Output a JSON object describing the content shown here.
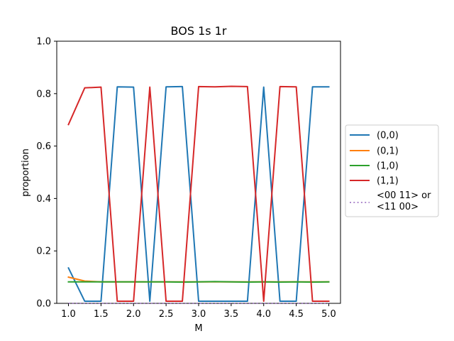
{
  "chart_data": {
    "type": "line",
    "title": "BOS 1s 1r",
    "xlabel": "M",
    "ylabel": "proportion",
    "xlim": [
      0.82,
      5.18
    ],
    "ylim": [
      0.0,
      1.0
    ],
    "x_ticks": [
      1.0,
      1.5,
      2.0,
      2.5,
      3.0,
      3.5,
      4.0,
      4.5,
      5.0
    ],
    "x_tick_labels": [
      "1.0",
      "1.5",
      "2.0",
      "2.5",
      "3.0",
      "3.5",
      "4.0",
      "4.5",
      "5.0"
    ],
    "y_ticks": [
      0.0,
      0.2,
      0.4,
      0.6,
      0.8,
      1.0
    ],
    "y_tick_labels": [
      "0.0",
      "0.2",
      "0.4",
      "0.6",
      "0.8",
      "1.0"
    ],
    "grid": false,
    "legend_position": "outside-right",
    "x": [
      1.0,
      1.25,
      1.5,
      1.75,
      2.0,
      2.25,
      2.5,
      2.75,
      3.0,
      3.25,
      3.5,
      3.75,
      4.0,
      4.25,
      4.5,
      4.75,
      5.0
    ],
    "series": [
      {
        "name": "(0,0)",
        "color": "#1f77b4",
        "dash": "solid",
        "values": [
          0.135,
          0.008,
          0.008,
          0.826,
          0.825,
          0.008,
          0.826,
          0.827,
          0.008,
          0.008,
          0.008,
          0.008,
          0.825,
          0.008,
          0.008,
          0.826,
          0.826
        ]
      },
      {
        "name": "(0,1)",
        "color": "#ff7f0e",
        "dash": "solid",
        "values": [
          0.1,
          0.085,
          0.082,
          0.082,
          0.082,
          0.082,
          0.082,
          0.082,
          0.082,
          0.082,
          0.082,
          0.082,
          0.082,
          0.082,
          0.082,
          0.082,
          0.082
        ]
      },
      {
        "name": "(1,0)",
        "color": "#2ca02c",
        "dash": "solid",
        "values": [
          0.082,
          0.082,
          0.082,
          0.082,
          0.082,
          0.082,
          0.082,
          0.081,
          0.082,
          0.083,
          0.082,
          0.081,
          0.082,
          0.081,
          0.082,
          0.081,
          0.082
        ]
      },
      {
        "name": "(1,1)",
        "color": "#d62728",
        "dash": "solid",
        "values": [
          0.682,
          0.822,
          0.825,
          0.008,
          0.008,
          0.825,
          0.008,
          0.008,
          0.827,
          0.826,
          0.828,
          0.827,
          0.008,
          0.827,
          0.826,
          0.008,
          0.008
        ]
      },
      {
        "name": "<00 11> or\n<11 00>",
        "legend_lines": [
          "<00 11> or",
          "<11 00>"
        ],
        "color": "#9467bd",
        "dash": "dotted",
        "values": [
          0.0,
          0.0,
          0.0,
          0.0,
          0.0,
          0.0,
          0.0,
          0.0,
          0.0,
          0.0,
          0.0,
          0.0,
          0.0,
          0.0,
          0.0,
          0.0,
          0.0
        ]
      }
    ]
  }
}
